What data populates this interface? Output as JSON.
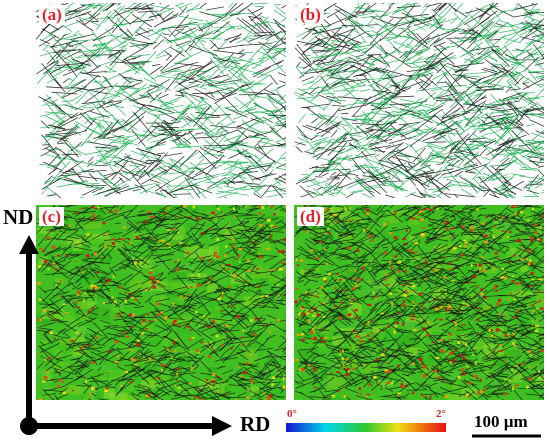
{
  "panels": [
    {
      "label": "(a)",
      "kind": "boundary-map"
    },
    {
      "label": "(b)",
      "kind": "boundary-map"
    },
    {
      "label": "(c)",
      "kind": "misorientation-map"
    },
    {
      "label": "(d)",
      "kind": "misorientation-map"
    }
  ],
  "axes": {
    "vertical": "ND",
    "horizontal": "RD"
  },
  "colorbar": {
    "min_label": "0°",
    "max_label": "2°",
    "colors": [
      "#1414d2",
      "#00d8e8",
      "#2ec82e",
      "#f0e010",
      "#f07010",
      "#e81010"
    ]
  },
  "scale_bar": {
    "label": "100 µm"
  },
  "colors": {
    "label_red": "#e8202a",
    "boundary_green": "#18b050",
    "map_green": "#40c020"
  }
}
